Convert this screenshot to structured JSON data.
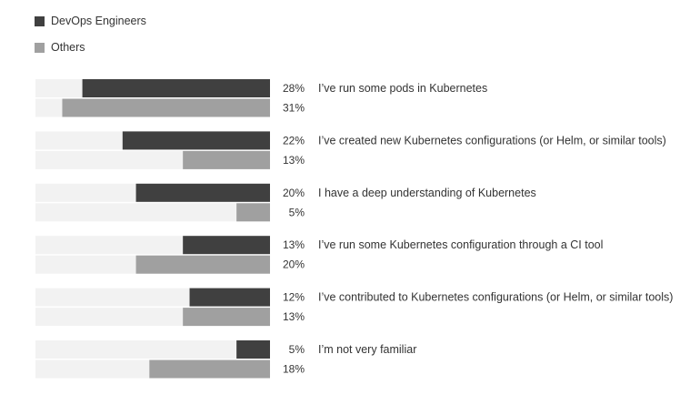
{
  "chart_data": {
    "type": "bar",
    "orientation": "horizontal",
    "title": "",
    "xlim": [
      0,
      100
    ],
    "legend_position": "top-left",
    "categories": [
      "I’ve run some pods in Kubernetes",
      "I’ve created new Kubernetes configurations (or Helm, or similar tools)",
      "I have a deep understanding of Kubernetes",
      "I’ve run some Kubernetes configuration through a CI tool",
      "I’ve contributed to Kubernetes configurations (or Helm, or similar tools)",
      "I’m not very familiar"
    ],
    "series": [
      {
        "name": "DevOps Engineers",
        "color": "#404040",
        "values": [
          28,
          22,
          20,
          13,
          12,
          5
        ],
        "value_labels": [
          "28%",
          "22%",
          "20%",
          "13%",
          "12%",
          "5%"
        ]
      },
      {
        "name": "Others",
        "color": "#a0a0a0",
        "values": [
          31,
          13,
          5,
          20,
          13,
          18
        ],
        "value_labels": [
          "31%",
          "13%",
          "5%",
          "20%",
          "13%",
          "18%"
        ]
      }
    ],
    "track_color": "#f2f2f2"
  }
}
